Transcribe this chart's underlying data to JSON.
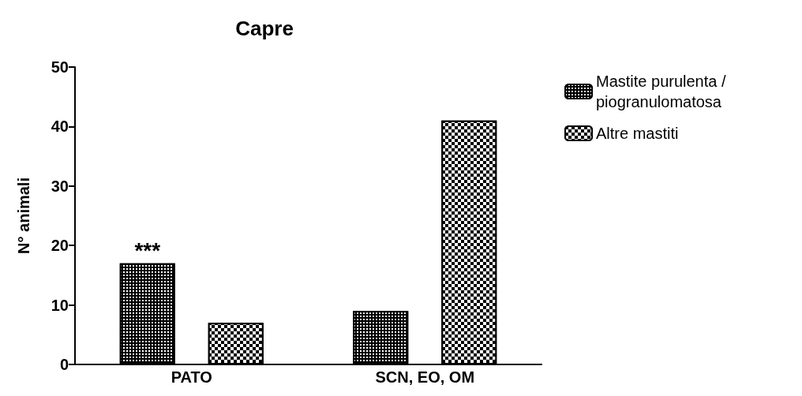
{
  "chart_data": {
    "type": "bar",
    "title": "Capre",
    "ylabel": "N° animali",
    "categories": [
      "PATO",
      "SCN, EO, OM"
    ],
    "series": [
      {
        "name": "Mastite purulenta / piogranulomatosa",
        "color": "#000000",
        "values": [
          17,
          9
        ],
        "value_labels": [
          "***",
          null
        ]
      },
      {
        "name": "Altre mastiti",
        "color": "#000000",
        "values": [
          7,
          41
        ]
      }
    ],
    "ylim": [
      0,
      50
    ],
    "yticks": [
      0,
      10,
      20,
      30,
      40,
      50
    ],
    "grid": false,
    "legend": "right"
  }
}
